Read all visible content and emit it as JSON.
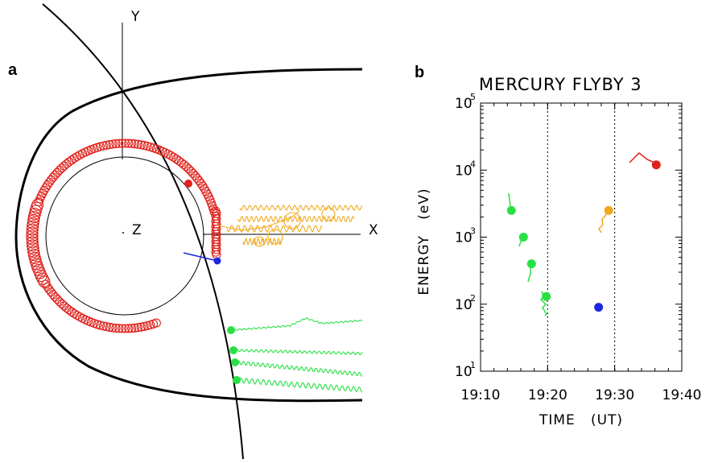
{
  "panel_a": {
    "label": "a",
    "axis_labels": {
      "x": "X",
      "y": "Y",
      "z": "Z"
    },
    "colors": {
      "magnetopause": "#000000",
      "planet": "#000000",
      "ion_high": "#e0201b",
      "ion_mid": "#f0a81c",
      "ion_low": "#28e044",
      "ion_blue": "#1a28e0"
    }
  },
  "panel_b": {
    "label": "b"
  },
  "chart_data": {
    "type": "scatter",
    "title": "MERCURY FLYBY 3",
    "xlabel": "TIME   (UT)",
    "ylabel": "ENERGY   (eV)",
    "y_scale": "log",
    "x_ticks": [
      "19:10",
      "19:20",
      "19:30",
      "19:40"
    ],
    "y_ticks": [
      {
        "base": "10",
        "exp": "1"
      },
      {
        "base": "10",
        "exp": "2"
      },
      {
        "base": "10",
        "exp": "3"
      },
      {
        "base": "10",
        "exp": "4"
      },
      {
        "base": "10",
        "exp": "5"
      }
    ],
    "xlim": [
      "19:10",
      "19:40"
    ],
    "ylim": [
      10,
      100000
    ],
    "vertical_dotted_lines": [
      "19:20",
      "19:30"
    ],
    "series": [
      {
        "color": "#28e044",
        "points": [
          {
            "x": "19:14.6",
            "y": 2500
          },
          {
            "x": "19:16.4",
            "y": 1000
          },
          {
            "x": "19:17.6",
            "y": 400
          },
          {
            "x": "19:19.8",
            "y": 130
          }
        ]
      },
      {
        "color": "#f0a81c",
        "points": [
          {
            "x": "19:29.1",
            "y": 2500
          }
        ]
      },
      {
        "color": "#1a28e0",
        "points": [
          {
            "x": "19:27.6",
            "y": 90
          }
        ]
      },
      {
        "color": "#e0201b",
        "points": [
          {
            "x": "19:36.2",
            "y": 12000
          }
        ]
      }
    ]
  }
}
